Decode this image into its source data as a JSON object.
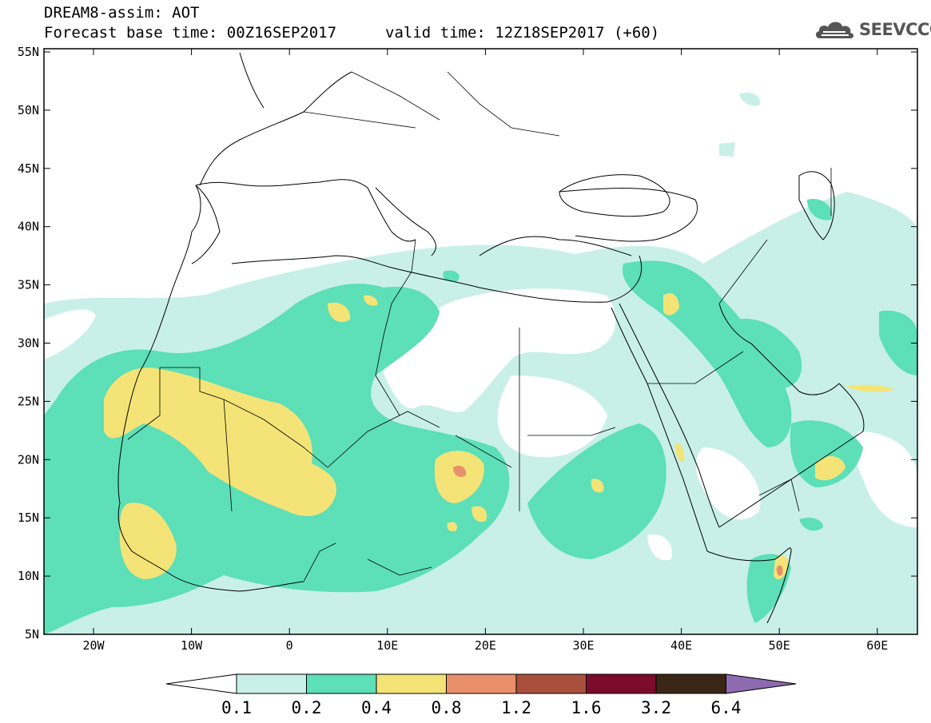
{
  "header": {
    "title_line1": "DREAM8-assim: AOT",
    "title_line2": "Forecast base time: 00Z16SEP2017",
    "valid_time": "valid time: 12Z18SEP2017 (+60)",
    "logo_text": "SEEVCCC"
  },
  "axes": {
    "lat_labels": [
      "55N",
      "50N",
      "45N",
      "40N",
      "35N",
      "30N",
      "25N",
      "20N",
      "15N",
      "10N",
      "5N"
    ],
    "lon_labels": [
      "20W",
      "10W",
      "0",
      "10E",
      "20E",
      "30E",
      "40E",
      "50E",
      "60E"
    ]
  },
  "legend": {
    "ticks": [
      "0.1",
      "0.2",
      "0.4",
      "0.8",
      "1.2",
      "1.6",
      "3.2",
      "6.4"
    ],
    "colors": [
      "#c8f0e8",
      "#5ddfb8",
      "#f4e477",
      "#e98f6a",
      "#a8503d",
      "#7a0b2b",
      "#3a2614",
      "#8e6ab0"
    ],
    "underflow_color": "#ffffff"
  }
}
